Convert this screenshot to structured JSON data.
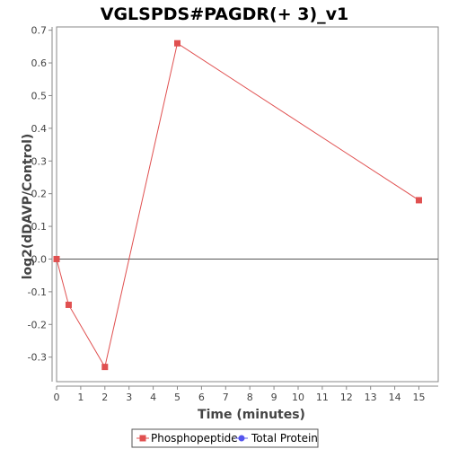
{
  "chart_data": {
    "type": "line",
    "title": "VGLSPDS#PAGDR(+ 3)_v1",
    "xlabel": "Time (minutes)",
    "ylabel": "log2(dDAVP/Control)",
    "xlim": [
      0,
      15.8
    ],
    "ylim": [
      -0.375,
      0.71
    ],
    "x_ticks": [
      0,
      1,
      2,
      3,
      4,
      5,
      6,
      7,
      8,
      9,
      10,
      11,
      12,
      13,
      14,
      15
    ],
    "x_tick_labels": [
      "0",
      "1",
      "2",
      "3",
      "4",
      "5",
      "6",
      "7",
      "8",
      "9",
      "10",
      "11",
      "12",
      "13",
      "14",
      "15"
    ],
    "y_ticks": [
      -0.3,
      -0.2,
      -0.1,
      0.0,
      0.1,
      0.2,
      0.3,
      0.4,
      0.5,
      0.6,
      0.7
    ],
    "y_tick_labels": [
      "-0.3",
      "-0.2",
      "-0.1",
      "0.0",
      "0.1",
      "0.2",
      "0.3",
      "0.4",
      "0.5",
      "0.6",
      "0.7"
    ],
    "zero_line": true,
    "grid": false,
    "legend_position": "bottom",
    "series": [
      {
        "name": "Phosphopeptide",
        "color": "#e05050",
        "marker": "square",
        "x": [
          0,
          0.5,
          2,
          5,
          15
        ],
        "y": [
          0.0,
          -0.14,
          -0.33,
          0.66,
          0.18
        ]
      },
      {
        "name": "Total Protein",
        "color": "#5555ee",
        "marker": "circle",
        "x": [],
        "y": []
      }
    ]
  }
}
